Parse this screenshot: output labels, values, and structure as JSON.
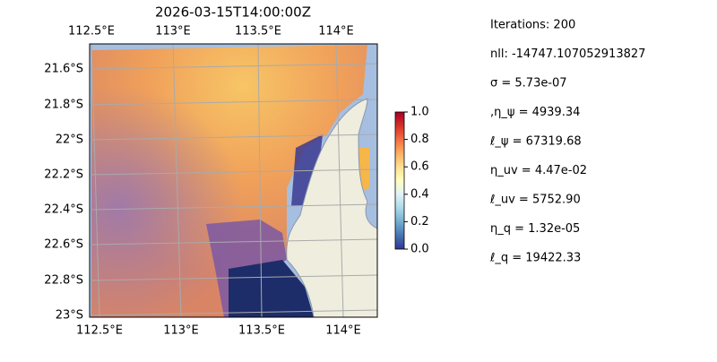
{
  "map": {
    "title": "2026-03-15T14:00:00Z",
    "lon_labels_top": [
      "112.5°E",
      "113°E",
      "113.5°E",
      "114°E"
    ],
    "lon_labels_bottom": [
      "112.5°E",
      "113°E",
      "113.5°E",
      "114°E"
    ],
    "lat_labels": [
      "21.6°S",
      "21.8°S",
      "22°S",
      "22.2°S",
      "22.4°S",
      "22.6°S",
      "22.8°S",
      "23°S"
    ]
  },
  "colorbar": {
    "ylim": [
      0,
      1
    ],
    "yticks": [
      {
        "value": 0,
        "label": "0.0"
      },
      {
        "value": 0.2,
        "label": "0.2"
      },
      {
        "value": 0.4,
        "label": "0.4"
      },
      {
        "value": 0.6,
        "label": "0.6"
      },
      {
        "value": 0.8,
        "label": "0.8"
      },
      {
        "value": 1,
        "label": "1.0"
      }
    ]
  },
  "params": [
    "Iterations: 200",
    "nll: -14747.107052913827",
    "σ = 5.73e-07",
    ",η_ψ = 4939.34",
    "ℓ_ψ = 67319.68",
    "η_uv = 4.47e-02",
    "ℓ_uv = 5752.90",
    "η_q = 1.32e-05",
    "ℓ_q = 19422.33"
  ]
}
